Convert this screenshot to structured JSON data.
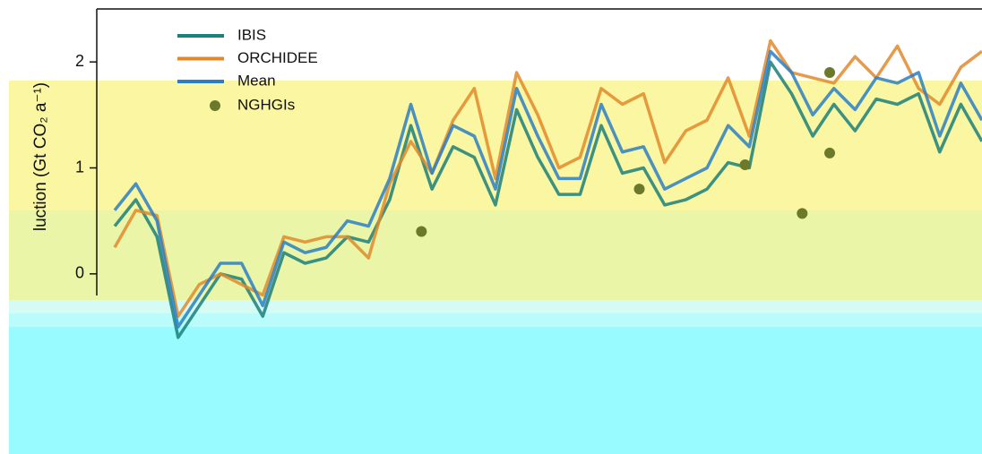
{
  "chart_data": {
    "type": "line",
    "y_label": "luction (Gt CO₂ a⁻¹)",
    "ylim": [
      -1.7,
      2.5
    ],
    "yticks": [
      0,
      1,
      2
    ],
    "xlim": [
      0,
      41
    ],
    "series": [
      {
        "name": "IBIS",
        "color": "#1b7f7a",
        "values": [
          0.45,
          0.7,
          0.35,
          -0.6,
          -0.3,
          0.0,
          -0.05,
          -0.4,
          0.2,
          0.1,
          0.15,
          0.35,
          0.3,
          0.7,
          1.4,
          0.8,
          1.2,
          1.1,
          0.65,
          1.55,
          1.1,
          0.75,
          0.75,
          1.4,
          0.95,
          1.0,
          0.65,
          0.7,
          0.8,
          1.05,
          1.0,
          2.0,
          1.7,
          1.3,
          1.6,
          1.35,
          1.65,
          1.6,
          1.7,
          1.15,
          1.6,
          1.25
        ]
      },
      {
        "name": "ORCHIDEE",
        "color": "#e0892c",
        "values": [
          0.25,
          0.6,
          0.55,
          -0.4,
          -0.1,
          0.0,
          -0.1,
          -0.2,
          0.35,
          0.3,
          0.35,
          0.35,
          0.15,
          0.85,
          1.25,
          0.95,
          1.45,
          1.75,
          0.9,
          1.9,
          1.5,
          1.0,
          1.1,
          1.75,
          1.6,
          1.7,
          1.05,
          1.35,
          1.45,
          1.85,
          1.3,
          2.2,
          1.9,
          1.85,
          1.8,
          2.05,
          1.85,
          2.15,
          1.75,
          1.6,
          1.95,
          2.1
        ]
      },
      {
        "name": "Mean",
        "color": "#2a7fc4",
        "values": [
          0.6,
          0.85,
          0.5,
          -0.5,
          -0.2,
          0.1,
          0.1,
          -0.3,
          0.3,
          0.2,
          0.25,
          0.5,
          0.45,
          0.9,
          1.6,
          0.95,
          1.4,
          1.3,
          0.8,
          1.75,
          1.3,
          0.9,
          0.9,
          1.6,
          1.15,
          1.2,
          0.8,
          0.9,
          1.0,
          1.4,
          1.2,
          2.1,
          1.9,
          1.5,
          1.75,
          1.55,
          1.85,
          1.8,
          1.9,
          1.3,
          1.8,
          1.45
        ]
      },
      {
        "name": "NGHGIs",
        "color": "#6b7a2a",
        "marker": "point",
        "x": [
          14.5,
          24.8,
          29.8,
          32.5,
          33.8,
          33.8
        ],
        "values": [
          0.4,
          0.8,
          1.03,
          0.57,
          1.14,
          1.9
        ]
      }
    ]
  }
}
